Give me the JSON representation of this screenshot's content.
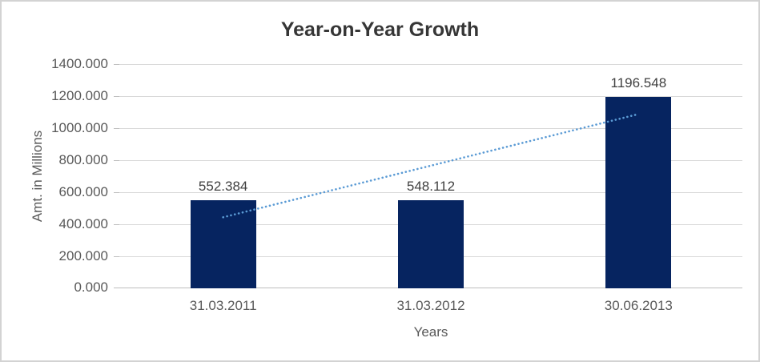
{
  "chart_data": {
    "type": "bar",
    "title": "Year-on-Year Growth",
    "xlabel": "Years",
    "ylabel": "Amt. in Millions",
    "categories": [
      "31.03.2011",
      "31.03.2012",
      "30.06.2013"
    ],
    "values": [
      552.384,
      548.112,
      1196.548
    ],
    "data_labels": [
      "552.384",
      "548.112",
      "1196.548"
    ],
    "ylim": [
      0,
      1400
    ],
    "ytick_step": 200,
    "ytick_labels": [
      "0.000",
      "200.000",
      "400.000",
      "600.000",
      "800.000",
      "1000.000",
      "1200.000",
      "1400.000"
    ],
    "grid": true,
    "legend": "none",
    "trendline": {
      "type": "linear",
      "style": "dotted",
      "color": "#5b9bd5"
    },
    "colors": {
      "bar": "#062460",
      "gridline": "#d9d9d9",
      "axis_line": "#bfbfbf",
      "tick_text": "#595959",
      "data_label_text": "#404040",
      "title_text": "#363636",
      "frame_border": "#d3d3d3",
      "background": "#ffffff"
    }
  }
}
